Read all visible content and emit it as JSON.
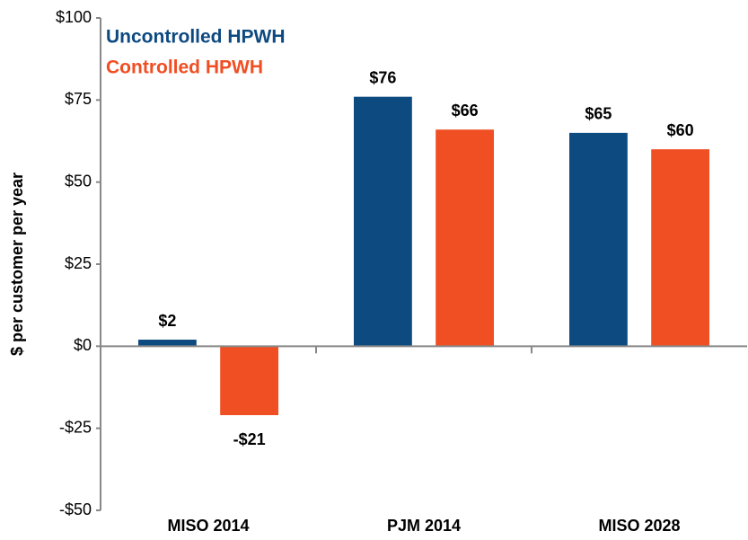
{
  "chart_data": {
    "type": "bar",
    "y_label": "$ per customer per year",
    "categories": [
      "MISO 2014",
      "PJM 2014",
      "MISO 2028"
    ],
    "series": [
      {
        "name": "Uncontrolled HPWH",
        "color": "#0d4a80",
        "values": [
          2,
          76,
          65
        ],
        "value_labels": [
          "$2",
          "$76",
          "$65"
        ]
      },
      {
        "name": "Controlled HPWH",
        "color": "#f04e23",
        "values": [
          -21,
          66,
          60
        ],
        "value_labels": [
          "-$21",
          "$66",
          "$60"
        ]
      }
    ],
    "ylim": [
      -50,
      100
    ],
    "yticks": [
      {
        "value": -50,
        "label": "-$50"
      },
      {
        "value": -25,
        "label": "-$25"
      },
      {
        "value": 0,
        "label": "$0"
      },
      {
        "value": 25,
        "label": "$25"
      },
      {
        "value": 50,
        "label": "$50"
      },
      {
        "value": 75,
        "label": "$75"
      },
      {
        "value": 100,
        "label": "$100"
      }
    ],
    "grid": false,
    "legend": "upper left"
  }
}
